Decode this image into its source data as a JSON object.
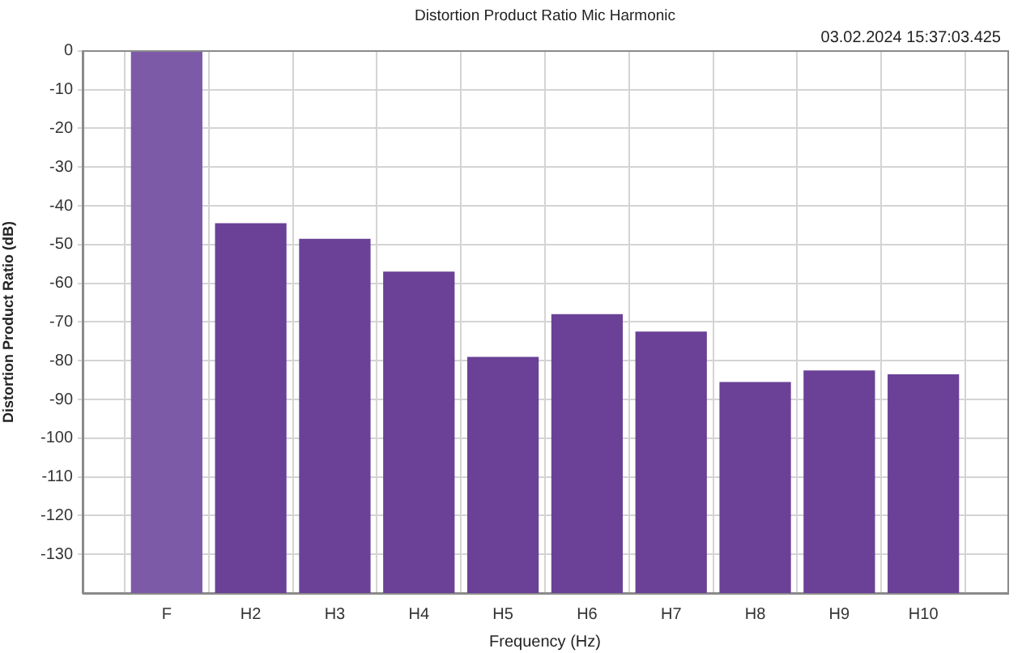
{
  "chart_data": {
    "type": "bar",
    "title": "Distortion Product Ratio Mic Harmonic",
    "xlabel": "Frequency (Hz)",
    "ylabel": "Distortion Product Ratio (dB)",
    "annotations": [
      "03.02.2024 15:37:03.425"
    ],
    "categories": [
      "F",
      "H2",
      "H3",
      "H4",
      "H5",
      "H6",
      "H7",
      "H8",
      "H9",
      "H10"
    ],
    "base": [
      -140,
      -140,
      -140,
      -140,
      -140,
      -140,
      -140,
      -140,
      -140,
      -140
    ],
    "values": [
      140,
      95.5,
      91.5,
      83,
      61,
      72,
      67.5,
      54.5,
      57.5,
      56.5
    ],
    "colors": [
      "#7c5aa8",
      "#6a4197",
      "#6a4197",
      "#6a4197",
      "#6a4197",
      "#6a4197",
      "#6a4197",
      "#6a4197",
      "#6a4197",
      "#6a4197"
    ],
    "ylim": [
      -140,
      0
    ],
    "yticks": [
      0,
      -10,
      -20,
      -30,
      -40,
      -50,
      -60,
      -70,
      -80,
      -90,
      -100,
      -110,
      -120,
      -130
    ],
    "grid": true
  }
}
